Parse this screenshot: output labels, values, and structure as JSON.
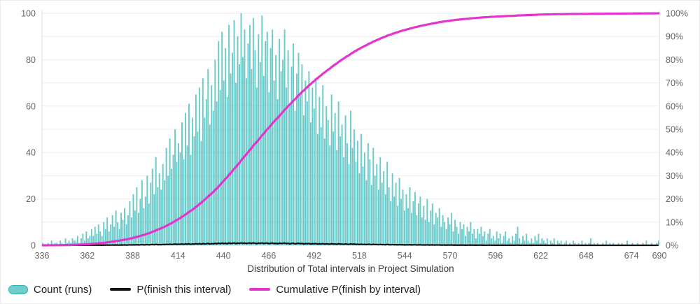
{
  "chart_data": {
    "type": "bar",
    "x_axis_title": "Distribution of Total intervals in Project Simulation",
    "x_start": 336,
    "x_end": 690,
    "bin_width": 1,
    "x_ticks": [
      336,
      362,
      388,
      414,
      440,
      466,
      492,
      518,
      544,
      570,
      596,
      622,
      648,
      674,
      690
    ],
    "y_left": {
      "min": 0,
      "max": 100,
      "ticks": [
        0,
        20,
        40,
        60,
        80,
        100
      ],
      "grid_step": 10
    },
    "y_right": {
      "min": 0,
      "max": 100,
      "ticks": [
        0,
        10,
        20,
        30,
        40,
        50,
        60,
        70,
        80,
        90,
        100
      ],
      "suffix": "%"
    },
    "legend_position": "bottom-left",
    "grid": true,
    "series": [
      {
        "name": "Count (runs)",
        "type": "bar",
        "axis": "left",
        "color": "#4bc0c0",
        "values": [
          1,
          0,
          0,
          1,
          0,
          2,
          0,
          1,
          1,
          0,
          2,
          1,
          0,
          3,
          1,
          2,
          1,
          3,
          2,
          2,
          4,
          1,
          3,
          5,
          2,
          6,
          3,
          4,
          7,
          4,
          8,
          5,
          9,
          6,
          4,
          10,
          7,
          12,
          6,
          9,
          13,
          8,
          15,
          10,
          7,
          14,
          11,
          16,
          9,
          13,
          19,
          12,
          22,
          15,
          25,
          14,
          20,
          28,
          16,
          21,
          30,
          18,
          27,
          33,
          22,
          38,
          25,
          31,
          24,
          35,
          28,
          42,
          30,
          46,
          33,
          39,
          50,
          36,
          44,
          40,
          53,
          37,
          57,
          43,
          61,
          39,
          55,
          47,
          65,
          49,
          68,
          45,
          72,
          55,
          63,
          76,
          52,
          69,
          58,
          80,
          62,
          88,
          67,
          92,
          71,
          85,
          64,
          95,
          74,
          83,
          97,
          70,
          90,
          78,
          100,
          81,
          93,
          72,
          87,
          95,
          76,
          98,
          84,
          68,
          91,
          79,
          99,
          73,
          88,
          92,
          66,
          85,
          93,
          71,
          82,
          63,
          89,
          75,
          80,
          93,
          68,
          84,
          60,
          77,
          87,
          58,
          74,
          83,
          65,
          78,
          56,
          71,
          62,
          75,
          53,
          68,
          59,
          72,
          48,
          64,
          51,
          69,
          46,
          60,
          54,
          43,
          65,
          49,
          57,
          41,
          62,
          47,
          52,
          38,
          56,
          44,
          35,
          58,
          42,
          50,
          36,
          45,
          31,
          48,
          34,
          40,
          28,
          44,
          37,
          26,
          42,
          30,
          35,
          24,
          38,
          27,
          32,
          22,
          36,
          25,
          19,
          31,
          21,
          27,
          17,
          29,
          20,
          24,
          15,
          22,
          16,
          25,
          14,
          19,
          23,
          13,
          18,
          21,
          12,
          17,
          11,
          20,
          10,
          15,
          18,
          9,
          14,
          12,
          16,
          8,
          13,
          10,
          7,
          12,
          9,
          14,
          6,
          11,
          8,
          5,
          10,
          7,
          9,
          4,
          8,
          6,
          10,
          5,
          7,
          3,
          7,
          5,
          8,
          4,
          6,
          2,
          5,
          7,
          3,
          4,
          2,
          6,
          3,
          5,
          1,
          4,
          6,
          2,
          3,
          1,
          4,
          2,
          5,
          8,
          3,
          1,
          4,
          2,
          5,
          2,
          1,
          3,
          1,
          4,
          2,
          5,
          1,
          3,
          2,
          1,
          3,
          0,
          2,
          1,
          3,
          0,
          2,
          1,
          2,
          0,
          1,
          2,
          0,
          1,
          0,
          2,
          1,
          0,
          1,
          0,
          2,
          0,
          1,
          0,
          1,
          3,
          0,
          1,
          0,
          1,
          0,
          0,
          1,
          0,
          2,
          0,
          1,
          0,
          1,
          0,
          0,
          1,
          0,
          1,
          0,
          0,
          2,
          0,
          0,
          1,
          0,
          0,
          1,
          0,
          0,
          1,
          0,
          2,
          0,
          0,
          1,
          0,
          0,
          1,
          2
        ]
      },
      {
        "name": "P(finish this interval)",
        "type": "line",
        "axis": "right",
        "color": "#111111",
        "derived_from": "count_of_bin / total_runs, plotted as percent on right axis (peaks about 1%)"
      },
      {
        "name": "Cumulative P(finish by interval)",
        "type": "line",
        "axis": "right",
        "color": "#e335cd",
        "derived_from": "running cumulative sum of counts / total_runs as percent; ~0% at 336, ~50% near 465, ~80% near 505, ~93% near 544, ~99% near 610, 100% by 690"
      }
    ]
  },
  "legend": {
    "items": [
      {
        "label": "Count (runs)",
        "swatch": "bar",
        "color": "#4bc0c0"
      },
      {
        "label": "P(finish this interval)",
        "swatch": "line",
        "color": "#111111"
      },
      {
        "label": "Cumulative P(finish by interval)",
        "swatch": "line",
        "color": "#e335cd"
      }
    ]
  },
  "colors": {
    "bar": "#4bc0c0",
    "p_line": "#111111",
    "cumulative_line": "#e335cd",
    "grid": "#ededed",
    "axis_border": "#dcdcdc",
    "tick_text": "#666666",
    "title_text": "#3a3a3a",
    "background": "#ffffff"
  }
}
